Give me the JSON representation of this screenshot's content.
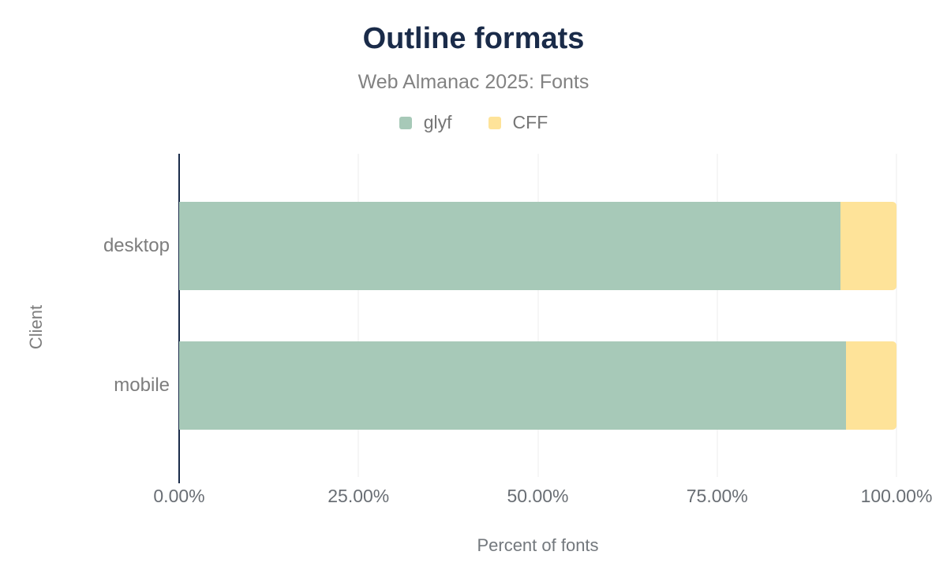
{
  "chart": {
    "title": "Outline formats",
    "subtitle": "Web Almanac 2025: Fonts",
    "xlabel": "Percent of fonts",
    "ylabel": "Client"
  },
  "chart_data": {
    "type": "bar",
    "orientation": "horizontal",
    "stacked": true,
    "title": "Outline formats",
    "subtitle": "Web Almanac 2025: Fonts",
    "xlabel": "Percent of fonts",
    "ylabel": "Client",
    "categories": [
      "desktop",
      "mobile"
    ],
    "series": [
      {
        "name": "glyf",
        "color": "#a7c9b8",
        "values": [
          92.2,
          93.0
        ]
      },
      {
        "name": "CFF",
        "color": "#fee399",
        "values": [
          7.8,
          7.0
        ]
      }
    ],
    "x_ticks": [
      "0.00%",
      "25.00%",
      "50.00%",
      "75.00%",
      "100.00%"
    ],
    "x_tick_values": [
      0,
      25,
      50,
      75,
      100
    ],
    "xlim": [
      0,
      100
    ],
    "legend_position": "top",
    "grid": "vertical"
  },
  "colors": {
    "title": "#1a2b49",
    "axis_line": "#1a2b49",
    "subtitle": "#828282",
    "legend_label": "#757575",
    "category_label": "#7d7d7d",
    "tick_label": "#696e74",
    "axis_title": "#73787d",
    "gridline": "#ededed",
    "background": "#ffffff"
  }
}
